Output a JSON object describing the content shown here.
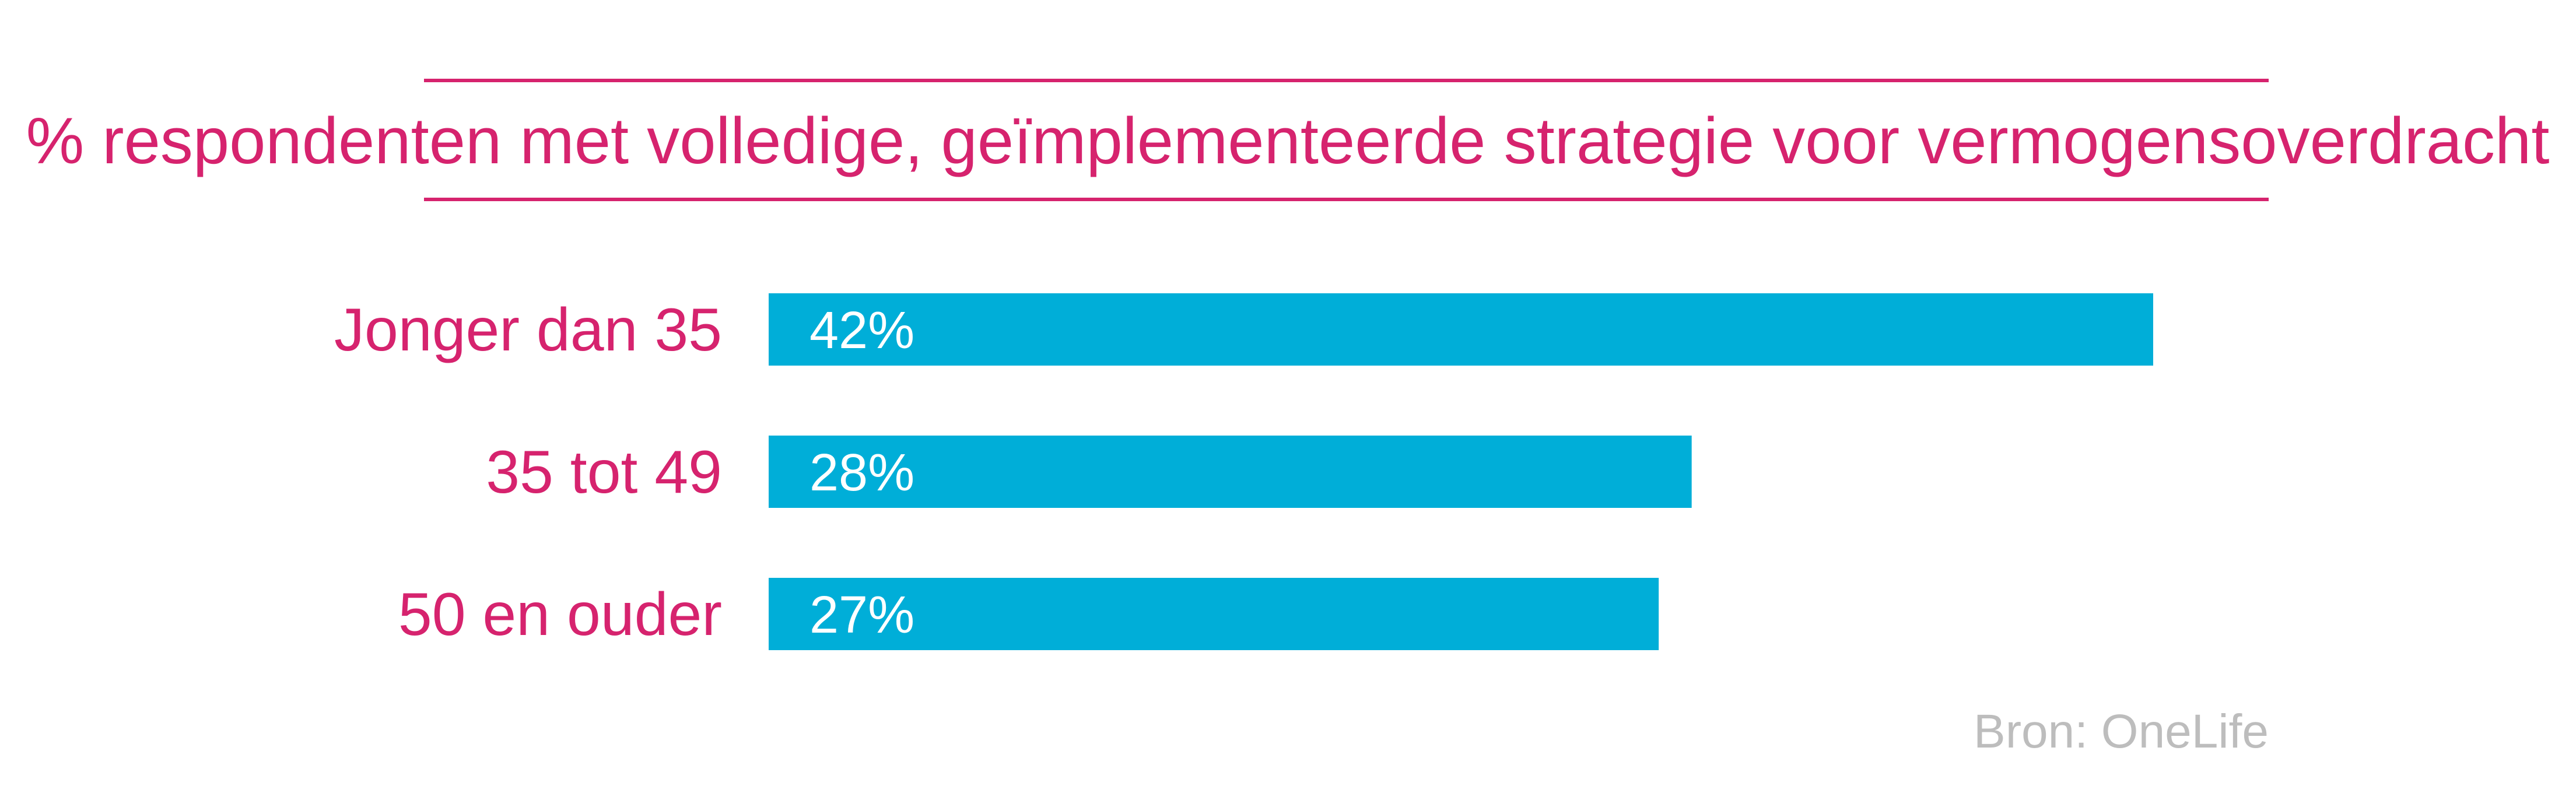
{
  "colors": {
    "accent": "#d6236e",
    "bar": "#00aed8",
    "bar_label": "#ffffff",
    "source": "#bdbdbd"
  },
  "source": "Bron: OneLife",
  "chart_data": {
    "type": "bar",
    "orientation": "horizontal",
    "title": "% respondenten met volledige, geïmplementeerde strategie voor vermogensoverdracht",
    "categories": [
      "Jonger dan 35",
      "35 tot 49",
      "50 en ouder"
    ],
    "values": [
      42,
      28,
      27
    ],
    "value_labels": [
      "42%",
      "28%",
      "27%"
    ],
    "xlabel": "",
    "ylabel": "",
    "xlim": [
      0,
      55
    ],
    "grid": false,
    "legend": "none"
  }
}
